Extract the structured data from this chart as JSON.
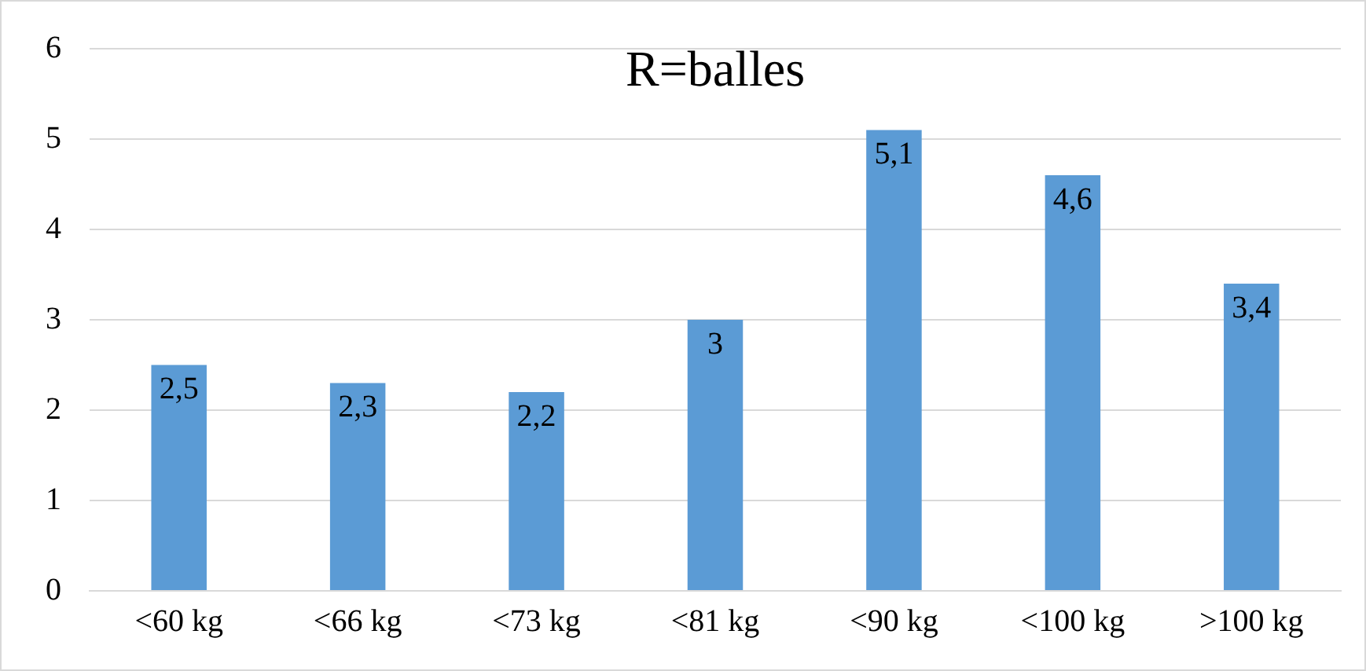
{
  "chart_data": {
    "type": "bar",
    "title": "R=balles",
    "categories": [
      "<60 kg",
      "<66 kg",
      "<73 kg",
      "<81 kg",
      "<90 kg",
      "<100 kg",
      ">100 kg"
    ],
    "values": [
      2.5,
      2.3,
      2.2,
      3,
      5.1,
      4.6,
      3.4
    ],
    "value_labels": [
      "2,5",
      "2,3",
      "2,2",
      "3",
      "5,1",
      "4,6",
      "3,4"
    ],
    "color": "#5b9bd5",
    "ylim": [
      0,
      6
    ],
    "yticks": [
      0,
      1,
      2,
      3,
      4,
      5,
      6
    ],
    "grid": "y",
    "legend": false
  }
}
